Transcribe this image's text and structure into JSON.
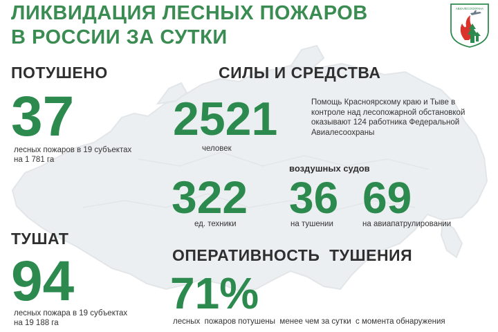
{
  "header": {
    "title": "ЛИКВИДАЦИЯ ЛЕСНЫХ ПОЖАРОВ\nВ РОССИИ ЗА СУТКИ",
    "logo_text": "АВИАЛЕСООХРАНА"
  },
  "extinguished": {
    "heading": "ПОТУШЕНО",
    "value": "37",
    "caption_line1": "лесных пожаров в 19 субъектах",
    "caption_line2": "на 1 781 га"
  },
  "fighting": {
    "heading": "ТУШАТ",
    "value": "94",
    "caption_line1": "лесных пожара в 19 субъектах",
    "caption_line2": "на 19 188 га"
  },
  "forces": {
    "heading": "СИЛЫ И СРЕДСТВА",
    "people_value": "2521",
    "people_label": "человек",
    "note": "Помощь Красноярскому краю и Тыве в\nконтроле над лесопожарной обстановкой\nоказывают 124 работника  Федеральной\nАвиалесоохраны",
    "equipment_value": "322",
    "equipment_label": "ед. техники",
    "aircraft_heading": "воздушных судов",
    "aircraft_fighting_value": "36",
    "aircraft_fighting_label": "на тушении",
    "aircraft_patrol_value": "69",
    "aircraft_patrol_label": "на авиапатрулировании"
  },
  "efficiency": {
    "heading": "ОПЕРАТИВНОСТЬ  ТУШЕНИЯ",
    "value": "71%",
    "caption": "лесных  пожаров потушены  менее чем за сутки  с момента обнаружения"
  },
  "colors": {
    "accent_green": "#2d8a4e",
    "title_green": "#3b8c52",
    "text_dark": "#2f2f2f",
    "map_gray": "#e9ecee",
    "logo_red": "#d9332b"
  }
}
